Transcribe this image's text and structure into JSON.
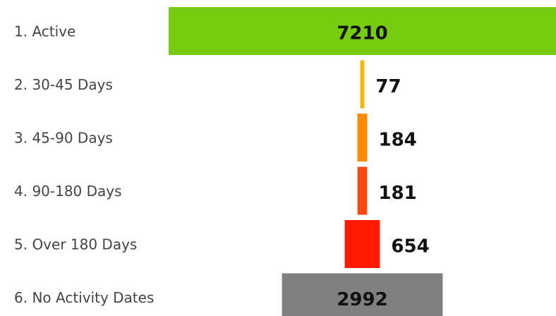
{
  "chart_data": {
    "type": "funnel",
    "categories": [
      "1. Active",
      "2. 30-45 Days",
      "3. 45-90 Days",
      "4. 90-180 Days",
      "5. Over 180 Days",
      "6. No Activity Dates"
    ],
    "values": [
      7210,
      77,
      184,
      181,
      654,
      2992
    ],
    "colors": [
      "#77cc11",
      "#f5b800",
      "#ff8c00",
      "#ff4a12",
      "#ff1a00",
      "#808080"
    ]
  }
}
